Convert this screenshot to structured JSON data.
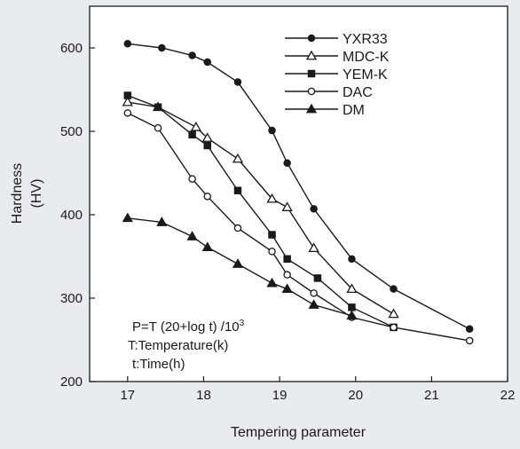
{
  "chart_data": {
    "type": "line",
    "xlabel": "Tempering parameter",
    "ylabel": [
      "Hardness",
      "(HV)"
    ],
    "xlim": [
      16.5,
      22
    ],
    "ylim": [
      200,
      650
    ],
    "xticks": [
      17,
      18,
      19,
      20,
      21,
      22
    ],
    "yticks": [
      200,
      300,
      400,
      500,
      600
    ],
    "grid": false,
    "legend_position": "top-right",
    "annotation": {
      "line1": "P=T (20+log t) /10",
      "line1_sup": "3",
      "line2": "T:Temperature(k)",
      "line3": "t:Time(h)"
    },
    "series": [
      {
        "name": "YXR33",
        "marker": "filled-circle",
        "x": [
          17.0,
          17.45,
          17.85,
          18.05,
          18.45,
          18.9,
          19.1,
          19.45,
          19.95,
          20.5,
          21.5
        ],
        "y": [
          605,
          600,
          591,
          583,
          559,
          501,
          462,
          407,
          347,
          311,
          263
        ]
      },
      {
        "name": "MDC-K",
        "marker": "open-triangle",
        "x": [
          17.0,
          17.4,
          17.9,
          18.05,
          18.45,
          18.9,
          19.1,
          19.45,
          19.95,
          20.5
        ],
        "y": [
          535,
          529,
          505,
          492,
          467,
          419,
          409,
          360,
          311,
          281
        ]
      },
      {
        "name": "YEM-K",
        "marker": "filled-square",
        "x": [
          17.0,
          17.4,
          17.85,
          18.05,
          18.45,
          18.9,
          19.1,
          19.5,
          19.95,
          20.5
        ],
        "y": [
          543,
          529,
          496,
          483,
          429,
          376,
          347,
          324,
          289,
          265
        ]
      },
      {
        "name": "DAC",
        "marker": "open-circle",
        "x": [
          17.0,
          17.4,
          17.85,
          18.05,
          18.45,
          18.9,
          19.1,
          19.45,
          19.95,
          20.5,
          21.5
        ],
        "y": [
          522,
          504,
          443,
          422,
          384,
          356,
          328,
          306,
          277,
          265,
          249
        ]
      },
      {
        "name": "DM",
        "marker": "filled-triangle",
        "x": [
          17.0,
          17.45,
          17.85,
          18.05,
          18.45,
          18.9,
          19.1,
          19.45,
          19.95
        ],
        "y": [
          396,
          391,
          374,
          361,
          341,
          318,
          311,
          292,
          279
        ]
      }
    ]
  }
}
